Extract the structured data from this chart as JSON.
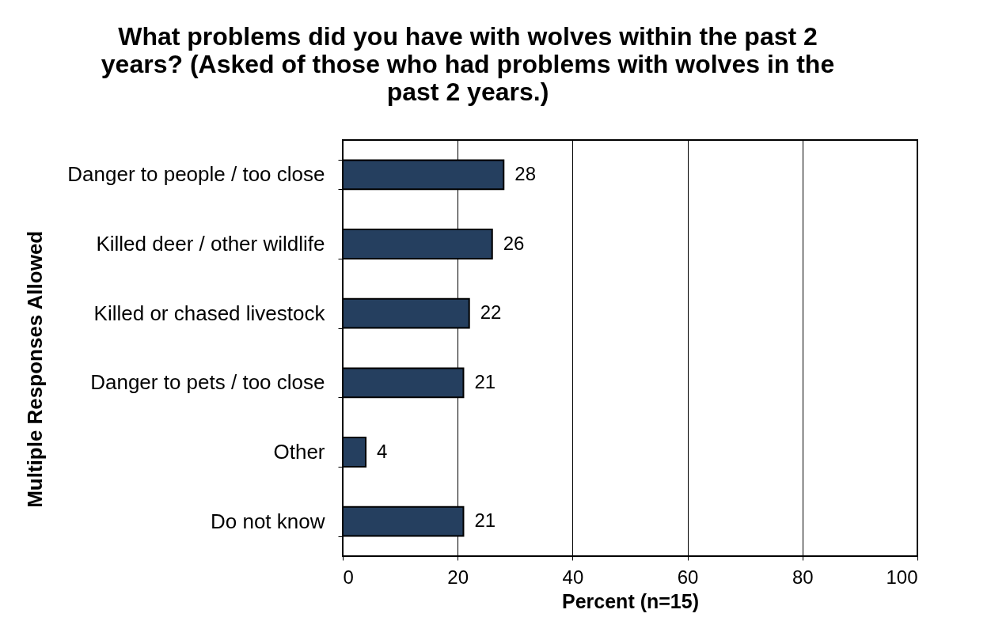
{
  "chart_data": {
    "type": "bar",
    "orientation": "horizontal",
    "title": "What problems did you have with wolves within the past 2 years? (Asked of those who had problems with wolves in the past 2 years.)",
    "xlabel": "Percent (n=15)",
    "ylabel": "Multiple Responses Allowed",
    "categories": [
      "Danger to people / too close",
      "Killed deer / other wildlife",
      "Killed or chased livestock",
      "Danger to pets / too close",
      "Other",
      "Do not know"
    ],
    "values": [
      28,
      26,
      22,
      21,
      4,
      21
    ],
    "color": "#253f5f",
    "xlim": [
      0,
      100
    ],
    "xticks": [
      0,
      20,
      40,
      60,
      80,
      100
    ],
    "grid": "x",
    "data_labels": true
  }
}
